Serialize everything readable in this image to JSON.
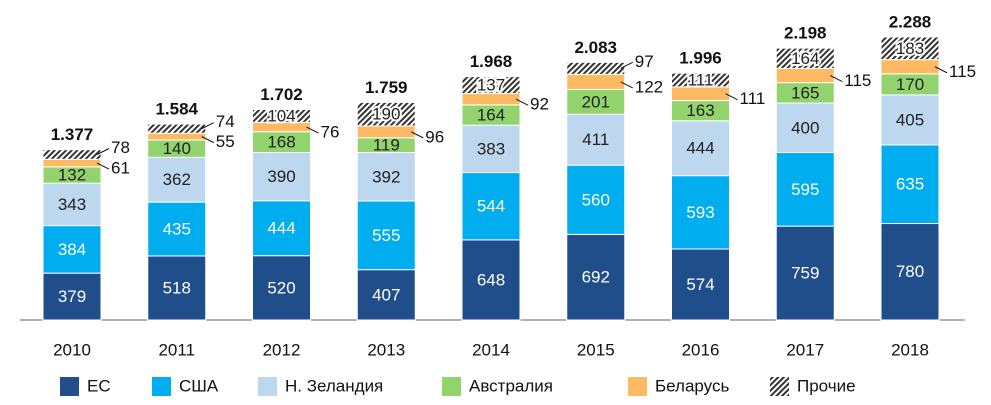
{
  "chart_data": {
    "type": "stacked_bar",
    "categories": [
      "2010",
      "2011",
      "2012",
      "2013",
      "2014",
      "2015",
      "2016",
      "2017",
      "2018"
    ],
    "series": [
      {
        "name": "ЕС",
        "color": "#1f4e8a",
        "values": [
          379,
          518,
          520,
          407,
          648,
          692,
          574,
          759,
          780
        ]
      },
      {
        "name": "США",
        "color": "#00aeef",
        "values": [
          384,
          435,
          444,
          555,
          544,
          560,
          593,
          595,
          635
        ]
      },
      {
        "name": "Н. Зеландия",
        "color": "#bdd7ef",
        "values": [
          343,
          362,
          390,
          392,
          383,
          411,
          444,
          400,
          405
        ]
      },
      {
        "name": "Австралия",
        "color": "#92d36e",
        "values": [
          132,
          140,
          168,
          119,
          164,
          201,
          163,
          165,
          170
        ]
      },
      {
        "name": "Беларусь",
        "color": "#fdba63",
        "values": [
          61,
          55,
          76,
          96,
          92,
          122,
          111,
          115,
          115
        ]
      },
      {
        "name": "Прочие",
        "color": "hatch",
        "values": [
          78,
          74,
          104,
          190,
          137,
          97,
          111,
          164,
          183
        ]
      }
    ],
    "totals": {
      "values": [
        1377,
        1584,
        1702,
        1759,
        1968,
        2083,
        1996,
        2198,
        2288
      ],
      "value_labels": [
        "1.377",
        "1.584",
        "1.702",
        "1.759",
        "1.968",
        "2.083",
        "1.996",
        "2.198",
        "2.288"
      ]
    },
    "legend": "bottom"
  }
}
